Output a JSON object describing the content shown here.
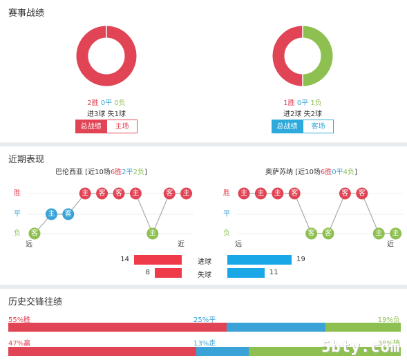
{
  "section1": {
    "title": "赛事战绩",
    "left": {
      "wins": "2胜",
      "draws": "0平",
      "losses": "0负",
      "goals": "进3球",
      "conceded": "失1球",
      "tab_total": "总战绩",
      "tab_home": "主场",
      "win_pct": 100,
      "loss_pct": 0
    },
    "right": {
      "wins": "1胜",
      "draws": "0平",
      "losses": "1负",
      "goals": "进2球",
      "conceded": "失2球",
      "tab_total": "总战绩",
      "tab_away": "客场",
      "win_pct": 50,
      "loss_pct": 50
    }
  },
  "section2": {
    "title": "近期表现",
    "left_team": {
      "name": "巴伦西亚",
      "prefix": "[近10场",
      "wins": "6胜",
      "draws": "2平",
      "losses": "2负",
      "suffix": "]"
    },
    "right_team": {
      "name": "奥萨苏纳",
      "prefix": "[近10场",
      "wins": "6胜",
      "draws": "0平",
      "losses": "4负",
      "suffix": "]"
    },
    "row_win": "胜",
    "row_draw": "平",
    "row_loss": "负",
    "far": "远",
    "near": "近",
    "left_results": [
      {
        "r": "L",
        "t": "客"
      },
      {
        "r": "D",
        "t": "主"
      },
      {
        "r": "D",
        "t": "客"
      },
      {
        "r": "W",
        "t": "主"
      },
      {
        "r": "W",
        "t": "客"
      },
      {
        "r": "W",
        "t": "客"
      },
      {
        "r": "W",
        "t": "主"
      },
      {
        "r": "L",
        "t": "主"
      },
      {
        "r": "W",
        "t": "客"
      },
      {
        "r": "W",
        "t": "主"
      }
    ],
    "right_results": [
      {
        "r": "W",
        "t": "主"
      },
      {
        "r": "W",
        "t": "主"
      },
      {
        "r": "W",
        "t": "主"
      },
      {
        "r": "W",
        "t": "客"
      },
      {
        "r": "L",
        "t": "客"
      },
      {
        "r": "L",
        "t": "客"
      },
      {
        "r": "W",
        "t": "客"
      },
      {
        "r": "W",
        "t": "客"
      },
      {
        "r": "L",
        "t": "主"
      },
      {
        "r": "L",
        "t": "主"
      }
    ],
    "stats": {
      "goals_label": "进球",
      "conceded_label": "失球",
      "left_goals": "14",
      "left_conceded": "8",
      "right_goals": "19",
      "right_conceded": "11",
      "left_goals_n": 14,
      "left_conceded_n": 8,
      "right_goals_n": 19,
      "right_conceded_n": 11
    }
  },
  "section3": {
    "title": "历史交锋往绩",
    "row1": {
      "win_label": "55%胜",
      "draw_label": "25%平",
      "loss_label": "19%负",
      "win": 55,
      "draw": 25,
      "loss": 19
    },
    "row2": {
      "win_label": "47%赢",
      "draw_label": "13%走",
      "loss_label": "38%输",
      "win": 47,
      "draw": 13,
      "loss": 38
    }
  },
  "watermark": "5bty.com",
  "colors": {
    "red": "#e04455",
    "blue": "#3aa2d6",
    "green": "#8dc050",
    "bright_red": "#ef3a49",
    "bright_blue": "#19a7e8"
  }
}
